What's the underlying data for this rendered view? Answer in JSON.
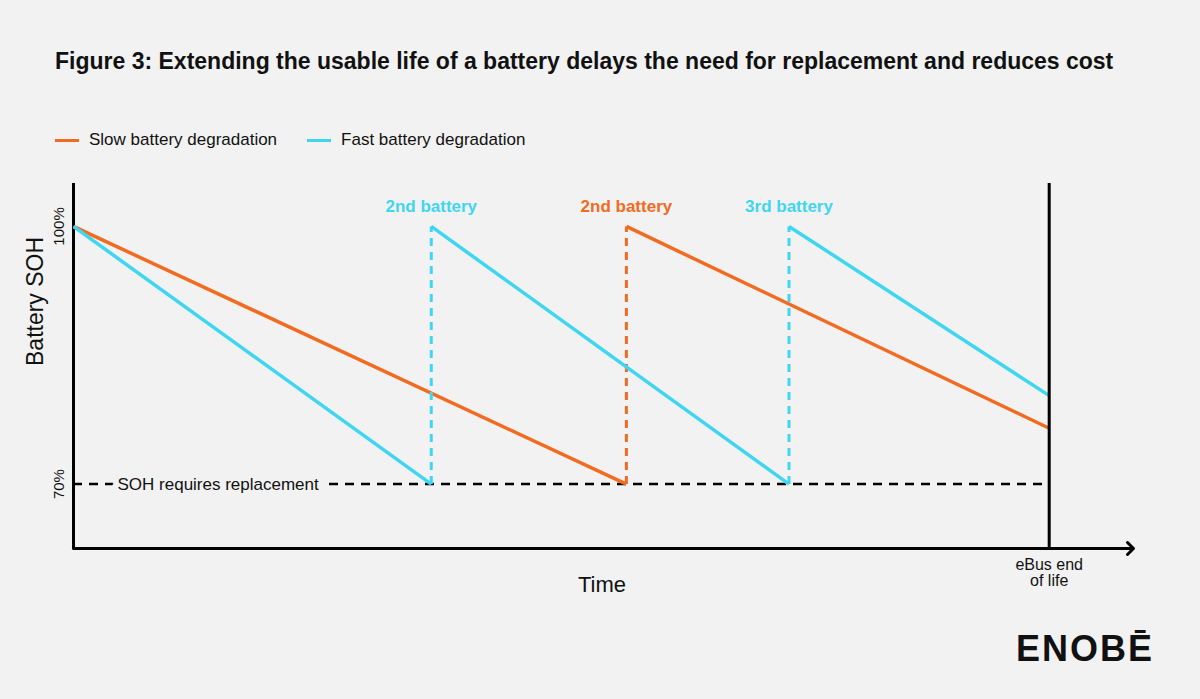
{
  "chart_data": {
    "type": "line",
    "title": "Figure 3: Extending the usable life of a battery delays the need for replacement and reduces cost",
    "x_label": "Time",
    "y_label": "Battery SOH",
    "series": [
      {
        "name": "Slow battery degradation",
        "color": "#f26b21",
        "x": [
          0,
          6.8,
          6.8,
          12
        ],
        "values": [
          100,
          70,
          100,
          76.5
        ]
      },
      {
        "name": "Fast battery degradation",
        "color": "#3fd6f2",
        "x": [
          0,
          4.4,
          4.4,
          8.8,
          8.8,
          12
        ],
        "values": [
          100,
          70,
          100,
          70,
          100,
          80.3
        ]
      }
    ],
    "xlim": [
      0,
      13
    ],
    "ylim": [
      62.5,
      105
    ],
    "yticks": [
      {
        "value": 70,
        "label": "70%"
      },
      {
        "value": 100,
        "label": "100%"
      }
    ],
    "tick_labels": "y",
    "grid": false,
    "legend": "top-left",
    "annotations": [
      {
        "text": "2nd battery",
        "x": 4.4,
        "y": 100,
        "series": "Fast battery degradation"
      },
      {
        "text": "2nd battery",
        "x": 6.8,
        "y": 100,
        "series": "Slow battery degradation"
      },
      {
        "text": "3rd battery",
        "x": 8.8,
        "y": 100,
        "series": "Fast battery degradation"
      }
    ],
    "reference_lines": [
      {
        "axis": "y",
        "value": 70,
        "label": "SOH requires replacement",
        "line_style": "dashed"
      },
      {
        "axis": "x",
        "value": 12,
        "label": "eBus end of life",
        "line_style": "solid"
      }
    ],
    "logo": "ENOBĒ"
  }
}
